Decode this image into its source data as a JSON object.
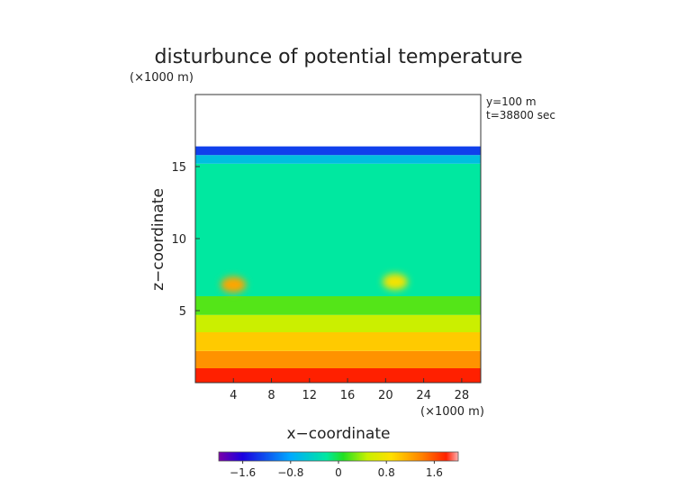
{
  "chart_data": {
    "type": "heatmap",
    "title": "disturbunce of potential temperature",
    "y_unit": "(×1000 m)",
    "x_unit": "(×1000 m)",
    "xlabel": "x−coordinate",
    "ylabel": "z−coordinate",
    "annotations": [
      "y=100 m",
      "t=38800 sec"
    ],
    "xlim": [
      0,
      30
    ],
    "ylim": [
      0,
      20
    ],
    "x_ticks": [
      "4",
      "8",
      "12",
      "16",
      "20",
      "24",
      "28"
    ],
    "y_ticks": [
      "5",
      "10",
      "15"
    ],
    "colorbar": {
      "range": [
        -2.0,
        2.0
      ],
      "ticks": [
        "−1.6",
        "−0.8",
        "0",
        "0.8",
        "1.6"
      ]
    },
    "field": {
      "top_of_data_z": 16.4,
      "bands": [
        {
          "z": [
            0.0,
            1.0
          ],
          "value": 1.8
        },
        {
          "z": [
            1.0,
            2.2
          ],
          "value": 1.3
        },
        {
          "z": [
            2.2,
            3.5
          ],
          "value": 1.0
        },
        {
          "z": [
            3.5,
            4.7
          ],
          "value": 0.5
        },
        {
          "z": [
            4.7,
            6.0
          ],
          "value": 0.2
        },
        {
          "z": [
            6.0,
            15.2
          ],
          "value": -0.2
        },
        {
          "z": [
            15.2,
            15.8
          ],
          "value": -0.6
        },
        {
          "z": [
            15.8,
            16.4
          ],
          "value": -1.3
        }
      ],
      "warm_blobs": [
        {
          "x": 4.0,
          "z": 6.8,
          "value": 1.2
        },
        {
          "x": 21.0,
          "z": 7.0,
          "value": 0.8
        }
      ]
    }
  }
}
